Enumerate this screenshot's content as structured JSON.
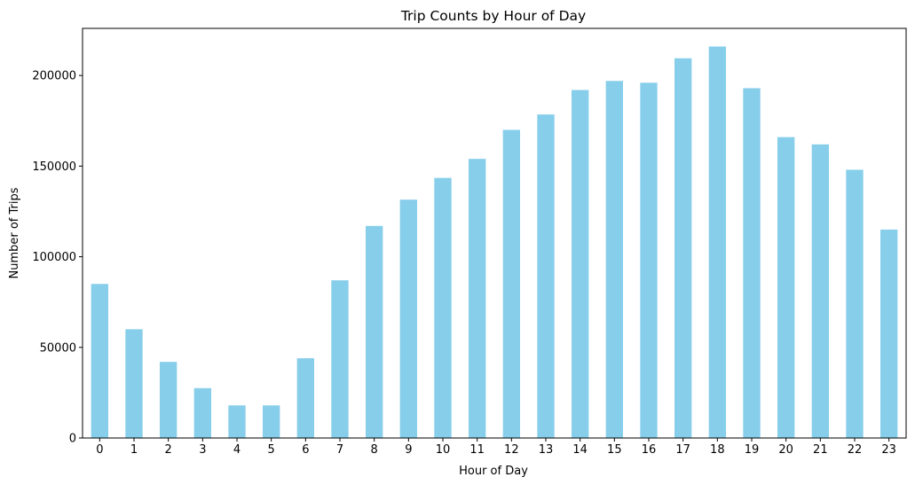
{
  "chart_data": {
    "type": "bar",
    "title": "Trip Counts by Hour of Day",
    "xlabel": "Hour of Day",
    "ylabel": "Number of Trips",
    "categories": [
      "0",
      "1",
      "2",
      "3",
      "4",
      "5",
      "6",
      "7",
      "8",
      "9",
      "10",
      "11",
      "12",
      "13",
      "14",
      "15",
      "16",
      "17",
      "18",
      "19",
      "20",
      "21",
      "22",
      "23"
    ],
    "values": [
      85000,
      60000,
      42000,
      27500,
      18000,
      18000,
      44000,
      87000,
      117000,
      131500,
      143500,
      154000,
      170000,
      178500,
      192000,
      197000,
      196000,
      209500,
      216000,
      193000,
      166000,
      162000,
      148000,
      115000
    ],
    "ylim": [
      0,
      226000
    ],
    "yticks": [
      0,
      50000,
      100000,
      150000,
      200000
    ],
    "ytick_labels": [
      "0",
      "50000",
      "100000",
      "150000",
      "200000"
    ],
    "bar_color": "#87CEEB",
    "grid": false,
    "legend": "none"
  }
}
